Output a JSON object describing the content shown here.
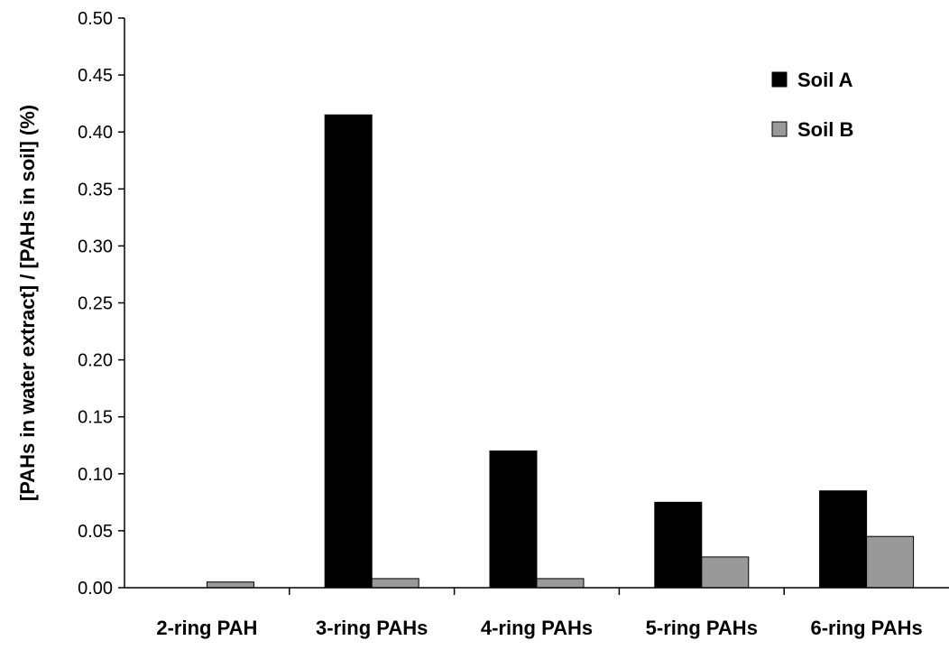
{
  "chart_data": {
    "type": "bar",
    "title": "",
    "xlabel": "",
    "ylabel": "[PAHs in water extract] / [PAHs in soil] (%)",
    "ylim": [
      0,
      0.5
    ],
    "ytick_step": 0.05,
    "ytick_labels": [
      "0.00",
      "0.05",
      "0.10",
      "0.15",
      "0.20",
      "0.25",
      "0.30",
      "0.35",
      "0.40",
      "0.45",
      "0.50"
    ],
    "categories": [
      "2-ring PAH",
      "3-ring PAHs",
      "4-ring PAHs",
      "5-ring PAHs",
      "6-ring PAHs"
    ],
    "series": [
      {
        "name": "Soil A",
        "color": "#000000",
        "values": [
          0.0,
          0.415,
          0.12,
          0.075,
          0.085
        ]
      },
      {
        "name": "Soil B",
        "color": "#999999",
        "values": [
          0.005,
          0.008,
          0.008,
          0.027,
          0.045
        ]
      }
    ],
    "grid": false,
    "legend_position": "top-right"
  }
}
